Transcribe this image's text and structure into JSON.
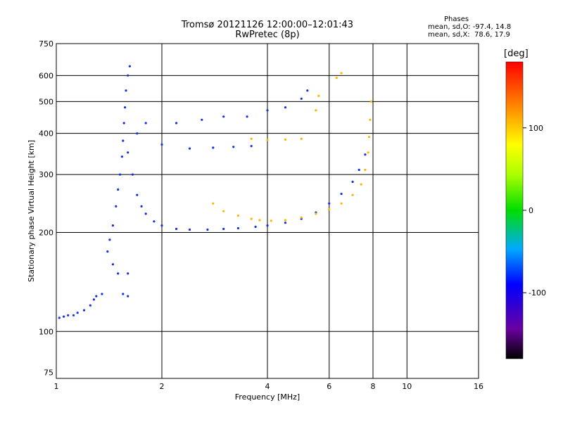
{
  "header": {
    "title_line1": "Tromsø 20121126 12:00:00–12:01:43",
    "title_line2": "RwPretec (8p)"
  },
  "stats": {
    "label": "Phases",
    "line_o": "mean, sd,O: -97.4, 14.8",
    "line_x": "mean, sd,X:  78.6, 17.9"
  },
  "chart_data": {
    "type": "scatter",
    "xlabel": "Frequency [MHz]",
    "ylabel": "Stationary phase Virtual Height [km]",
    "xscale": "log",
    "yscale": "log",
    "xlim": [
      1,
      16
    ],
    "ylim": [
      72,
      750
    ],
    "x_ticks": [
      1,
      2,
      4,
      6,
      8,
      10,
      16
    ],
    "y_ticks": [
      75,
      100,
      200,
      300,
      400,
      500,
      600,
      750
    ],
    "grid": true,
    "colorbar": {
      "label": "[deg]",
      "range": [
        -180,
        180
      ],
      "ticks": [
        -100,
        0,
        100
      ]
    },
    "series": [
      {
        "mode": "O",
        "description_phase": -100,
        "points": [
          [
            1.02,
            110
          ],
          [
            1.05,
            111
          ],
          [
            1.08,
            112
          ],
          [
            1.12,
            112
          ],
          [
            1.15,
            114
          ],
          [
            1.2,
            116
          ],
          [
            1.25,
            120
          ],
          [
            1.28,
            125
          ],
          [
            1.3,
            128
          ],
          [
            1.35,
            130
          ],
          [
            1.4,
            175
          ],
          [
            1.42,
            190
          ],
          [
            1.45,
            210
          ],
          [
            1.48,
            240
          ],
          [
            1.5,
            270
          ],
          [
            1.52,
            300
          ],
          [
            1.54,
            340
          ],
          [
            1.55,
            380
          ],
          [
            1.56,
            430
          ],
          [
            1.57,
            480
          ],
          [
            1.58,
            540
          ],
          [
            1.6,
            600
          ],
          [
            1.62,
            640
          ],
          [
            1.6,
            350
          ],
          [
            1.65,
            300
          ],
          [
            1.7,
            260
          ],
          [
            1.75,
            240
          ],
          [
            1.8,
            228
          ],
          [
            1.9,
            216
          ],
          [
            2.0,
            210
          ],
          [
            2.2,
            205
          ],
          [
            2.4,
            204
          ],
          [
            2.7,
            204
          ],
          [
            3.0,
            205
          ],
          [
            3.3,
            206
          ],
          [
            3.7,
            208
          ],
          [
            4.0,
            210
          ],
          [
            4.5,
            214
          ],
          [
            5.0,
            220
          ],
          [
            5.5,
            230
          ],
          [
            6.0,
            245
          ],
          [
            6.5,
            262
          ],
          [
            7.0,
            285
          ],
          [
            7.3,
            310
          ],
          [
            7.6,
            345
          ],
          [
            1.7,
            400
          ],
          [
            2.0,
            370
          ],
          [
            2.4,
            360
          ],
          [
            2.8,
            362
          ],
          [
            3.2,
            364
          ],
          [
            3.6,
            366
          ],
          [
            1.8,
            430
          ],
          [
            2.2,
            430
          ],
          [
            2.6,
            440
          ],
          [
            3.0,
            450
          ],
          [
            3.5,
            450
          ],
          [
            4.0,
            470
          ],
          [
            4.5,
            480
          ],
          [
            5.0,
            510
          ],
          [
            5.2,
            540
          ],
          [
            1.45,
            160
          ],
          [
            1.5,
            150
          ],
          [
            1.6,
            150
          ],
          [
            1.55,
            130
          ],
          [
            1.6,
            128
          ]
        ]
      },
      {
        "mode": "X",
        "description_phase": 90,
        "points": [
          [
            2.8,
            245
          ],
          [
            3.0,
            232
          ],
          [
            3.3,
            225
          ],
          [
            3.6,
            220
          ],
          [
            3.8,
            218
          ],
          [
            4.1,
            217
          ],
          [
            4.5,
            218
          ],
          [
            5.0,
            222
          ],
          [
            5.5,
            228
          ],
          [
            6.0,
            235
          ],
          [
            6.5,
            245
          ],
          [
            7.0,
            260
          ],
          [
            7.4,
            280
          ],
          [
            7.6,
            310
          ],
          [
            7.75,
            350
          ],
          [
            7.8,
            390
          ],
          [
            7.85,
            440
          ],
          [
            7.9,
            500
          ],
          [
            3.6,
            385
          ],
          [
            4.0,
            382
          ],
          [
            4.5,
            383
          ],
          [
            5.0,
            385
          ],
          [
            5.5,
            470
          ],
          [
            5.6,
            520
          ],
          [
            6.3,
            590
          ],
          [
            6.5,
            610
          ]
        ]
      }
    ]
  }
}
